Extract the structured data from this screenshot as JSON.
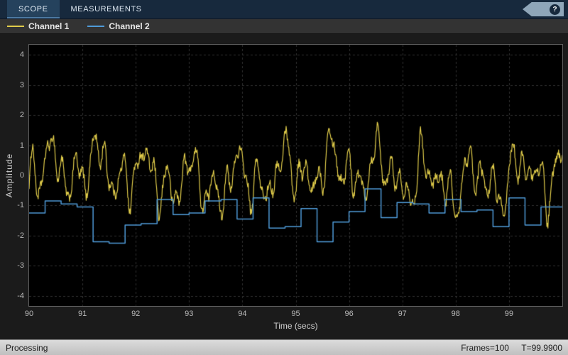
{
  "toolbar": {
    "tabs": [
      {
        "label": "SCOPE",
        "active": true
      },
      {
        "label": "MEASUREMENTS",
        "active": false
      }
    ],
    "help_label": "?"
  },
  "legend": {
    "items": [
      {
        "label": "Channel 1",
        "color": "#e0cc4a"
      },
      {
        "label": "Channel 2",
        "color": "#4f9bd9"
      }
    ]
  },
  "status_bar": {
    "left": "Processing",
    "frames": "Frames=100",
    "time": "T=99.9900"
  },
  "chart_data": {
    "type": "line",
    "title": "",
    "xlabel": "Time (secs)",
    "ylabel": "Amplitude",
    "xlim": [
      90,
      100
    ],
    "ylim": [
      -4.33,
      4.33
    ],
    "xticks": [
      90,
      91,
      92,
      93,
      94,
      95,
      96,
      97,
      98,
      99
    ],
    "yticks": [
      -4,
      -3,
      -2,
      -1,
      0,
      1,
      2,
      3,
      4
    ],
    "grid": true,
    "legend_position": "top-left",
    "colors": {
      "figure_background": "#1b1b1b",
      "axes_background": "#000000",
      "grid": "#303030",
      "axis_border": "#5f5f5f",
      "tick_label": "#b8b8b8",
      "axis_label": "#cfcfcf"
    },
    "series": [
      {
        "name": "Channel 1",
        "color": "#e0cc4a",
        "kind": "multisine",
        "offset": 0,
        "freqs": [
          0.21,
          1.13,
          2.31,
          3.57,
          5.23,
          7.41
        ],
        "amps": [
          0.25,
          0.5,
          0.45,
          0.4,
          0.3,
          0.22
        ],
        "phases": [
          0.9,
          0.7,
          2.1,
          4.4,
          1.3,
          5.6
        ],
        "noise_amplitude": 0.15,
        "noise_seed": 1234,
        "sample_step": 0.01
      },
      {
        "name": "Channel 2",
        "color": "#4f9bd9",
        "kind": "staircase",
        "t_start": 90,
        "dt": 0.3,
        "levels": [
          -1.25,
          -0.85,
          -0.95,
          -1.05,
          -2.2,
          -2.25,
          -1.65,
          -1.6,
          -0.8,
          -1.3,
          -1.25,
          -0.85,
          -0.8,
          -1.45,
          -0.75,
          -1.75,
          -1.7,
          -1.1,
          -2.2,
          -1.55,
          -1.2,
          -0.45,
          -1.4,
          -0.9,
          -0.95,
          -1.25,
          -0.8,
          -1.2,
          -1.15,
          -1.7,
          -0.75,
          -1.65,
          -1.05
        ]
      }
    ]
  }
}
